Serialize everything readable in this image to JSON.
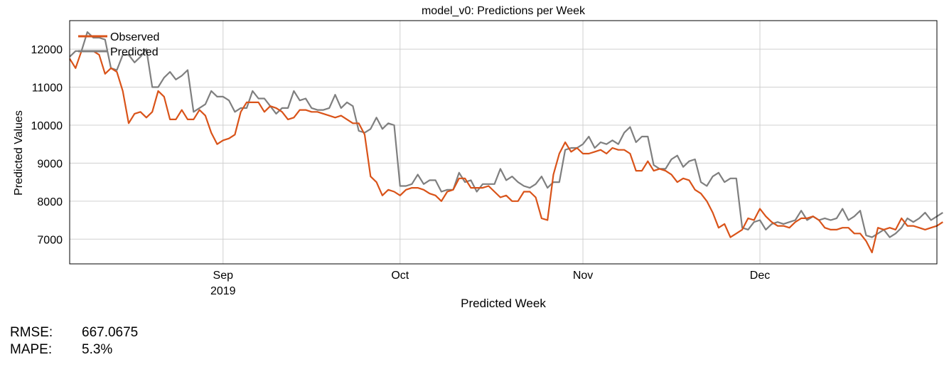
{
  "chart_data": {
    "type": "line",
    "title": "model_v0: Predictions per Week",
    "xlabel": "Predicted Week",
    "ylabel": "Predicted Values",
    "x_start": "2019-08-06",
    "x_end": "2019-12-31",
    "x_ticks": [
      {
        "date": "2019-09-01",
        "label": "Sep",
        "sublabel": "2019"
      },
      {
        "date": "2019-10-01",
        "label": "Oct",
        "sublabel": ""
      },
      {
        "date": "2019-11-01",
        "label": "Nov",
        "sublabel": ""
      },
      {
        "date": "2019-12-01",
        "label": "Dec",
        "sublabel": ""
      }
    ],
    "y_ticks": [
      7000,
      8000,
      9000,
      10000,
      11000,
      12000
    ],
    "ylim": [
      6350,
      12750
    ],
    "grid": true,
    "legend_position": "top-left",
    "series": [
      {
        "name": "Observed",
        "color": "#d95319",
        "start_date": "2019-08-06",
        "values": [
          11750,
          11500,
          11950,
          11950,
          11950,
          11850,
          11350,
          11500,
          11400,
          10900,
          10050,
          10300,
          10350,
          10200,
          10350,
          10900,
          10750,
          10150,
          10150,
          10400,
          10150,
          10150,
          10400,
          10250,
          9800,
          9500,
          9600,
          9650,
          9750,
          10350,
          10600,
          10600,
          10600,
          10350,
          10500,
          10450,
          10350,
          10150,
          10200,
          10400,
          10400,
          10350,
          10350,
          10300,
          10250,
          10200,
          10250,
          10150,
          10050,
          10050,
          9750,
          8650,
          8500,
          8150,
          8300,
          8250,
          8150,
          8300,
          8350,
          8350,
          8300,
          8200,
          8150,
          8000,
          8250,
          8300,
          8600,
          8600,
          8350,
          8350,
          8350,
          8400,
          8250,
          8100,
          8150,
          8000,
          8000,
          8250,
          8250,
          8100,
          7550,
          7500,
          8700,
          9250,
          9550,
          9300,
          9400,
          9250,
          9250,
          9300,
          9350,
          9250,
          9400,
          9350,
          9350,
          9250,
          8800,
          8800,
          9050,
          8800,
          8850,
          8800,
          8700,
          8500,
          8600,
          8550,
          8300,
          8200,
          8000,
          7700,
          7300,
          7400,
          7050,
          7150,
          7250,
          7550,
          7500,
          7800,
          7600,
          7450,
          7350,
          7350,
          7300,
          7450,
          7550,
          7550,
          7600,
          7500,
          7300,
          7250,
          7250,
          7300,
          7300,
          7150,
          7150,
          6950,
          6650,
          7300,
          7250,
          7300,
          7250,
          7550,
          7350,
          7350,
          7300,
          7250,
          7300,
          7350,
          7450
        ]
      },
      {
        "name": "Predicted",
        "color": "#7f7f7f",
        "start_date": "2019-08-06",
        "values": [
          11800,
          11950,
          11950,
          12450,
          12300,
          12300,
          12250,
          11500,
          11450,
          11850,
          11850,
          11650,
          11800,
          12000,
          11000,
          11000,
          11250,
          11400,
          11200,
          11300,
          11450,
          10350,
          10450,
          10550,
          10900,
          10750,
          10750,
          10650,
          10350,
          10450,
          10450,
          10900,
          10700,
          10700,
          10500,
          10300,
          10450,
          10450,
          10900,
          10650,
          10700,
          10450,
          10400,
          10400,
          10450,
          10800,
          10450,
          10600,
          10500,
          9850,
          9800,
          9900,
          10200,
          9900,
          10050,
          10000,
          8400,
          8400,
          8450,
          8700,
          8450,
          8550,
          8550,
          8250,
          8300,
          8300,
          8750,
          8500,
          8550,
          8250,
          8450,
          8450,
          8450,
          8850,
          8550,
          8650,
          8500,
          8400,
          8350,
          8450,
          8650,
          8350,
          8500,
          8500,
          9350,
          9400,
          9400,
          9500,
          9700,
          9400,
          9550,
          9500,
          9600,
          9500,
          9800,
          9950,
          9550,
          9700,
          9700,
          8950,
          8850,
          8850,
          9100,
          9200,
          8900,
          9050,
          9100,
          8500,
          8400,
          8650,
          8750,
          8500,
          8600,
          8600,
          7300,
          7250,
          7450,
          7500,
          7250,
          7400,
          7450,
          7400,
          7450,
          7500,
          7750,
          7500,
          7600,
          7500,
          7550,
          7500,
          7550,
          7800,
          7500,
          7600,
          7750,
          7100,
          7050,
          7150,
          7250,
          7050,
          7150,
          7300,
          7550,
          7450,
          7550,
          7700,
          7500,
          7600,
          7700
        ]
      }
    ]
  },
  "metrics": [
    {
      "label": "RMSE:",
      "value": "667.0675"
    },
    {
      "label": "MAPE:",
      "value": "5.3%"
    }
  ]
}
